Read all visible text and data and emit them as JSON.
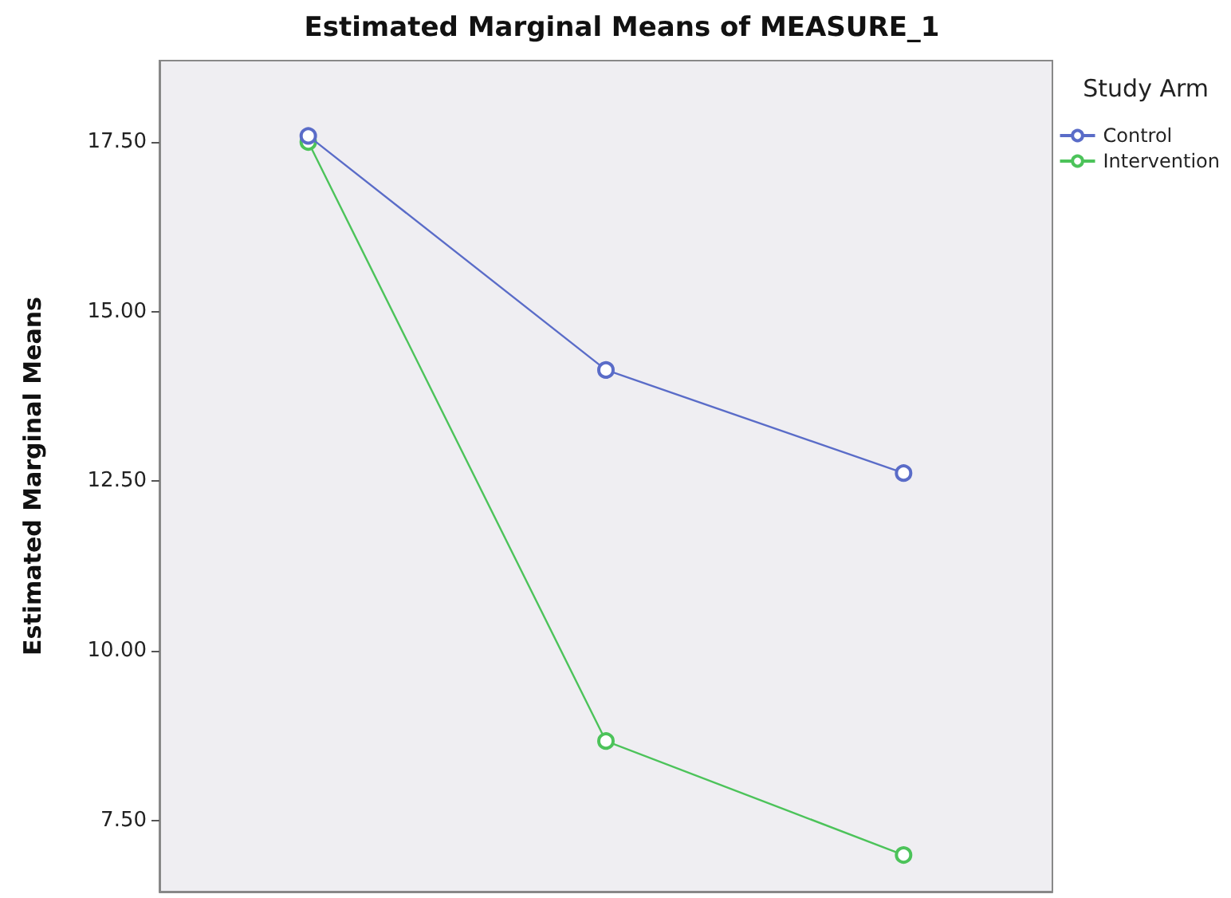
{
  "chart_data": {
    "type": "line",
    "title": "Estimated Marginal Means of MEASURE_1",
    "ylabel": "Estimated Marginal Means",
    "legend_title": "Study Arm",
    "categories": [
      null,
      null,
      null
    ],
    "series": [
      {
        "name": "Control",
        "color": "#5a6cc8",
        "values": [
          17.59,
          14.14,
          12.62
        ]
      },
      {
        "name": "Intervention",
        "color": "#4cc35a",
        "values": [
          17.5,
          8.67,
          6.99
        ]
      }
    ],
    "ylim": [
      6.45,
      18.7
    ],
    "yticks": [
      {
        "value": 7.5,
        "label": "7.50"
      },
      {
        "value": 10,
        "label": "10.00"
      },
      {
        "value": 12.5,
        "label": "12.50"
      },
      {
        "value": 15,
        "label": "15.00"
      },
      {
        "value": 17.5,
        "label": "17.50"
      }
    ],
    "grid": false,
    "legend": "top right",
    "marker": "circle",
    "line_style": "solid",
    "tick_labels": "y"
  }
}
